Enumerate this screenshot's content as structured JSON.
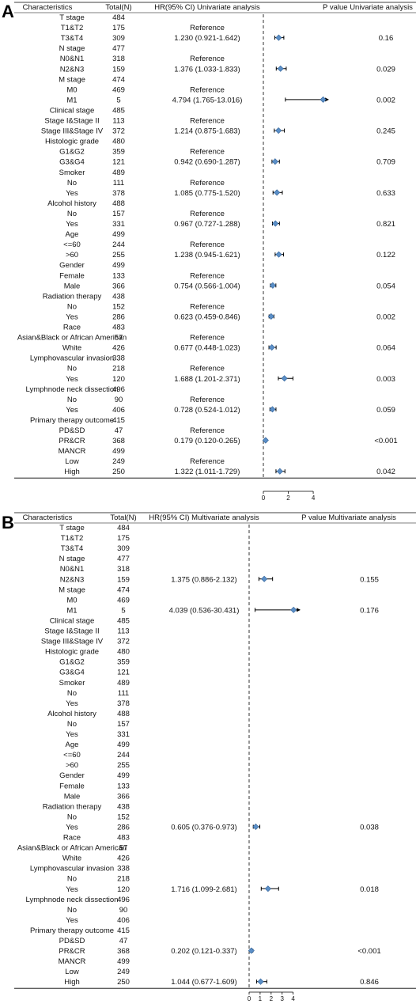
{
  "chart_data": [
    {
      "type": "forest",
      "panel": "A",
      "headers": {
        "characteristics": "Characteristics",
        "total": "Total(N)",
        "hr": "HR(95% CI) Univariate analysis",
        "p": "P value Univariate analysis"
      },
      "x_ticks": [
        "0",
        "2",
        "4"
      ],
      "x_range": [
        0,
        5.2
      ],
      "reference_line": 0,
      "rows": [
        {
          "label": "T stage",
          "n": "484"
        },
        {
          "label": "T1&T2",
          "n": "175",
          "hr_text": "Reference"
        },
        {
          "label": "T3&T4",
          "n": "309",
          "hr_text": "1.230 (0.921-1.642)",
          "hr": 1.23,
          "lo": 0.921,
          "hi": 1.642,
          "p": "0.16"
        },
        {
          "label": "N stage",
          "n": "477"
        },
        {
          "label": "N0&N1",
          "n": "318",
          "hr_text": "Reference"
        },
        {
          "label": "N2&N3",
          "n": "159",
          "hr_text": "1.376 (1.033-1.833)",
          "hr": 1.376,
          "lo": 1.033,
          "hi": 1.833,
          "p": "0.029"
        },
        {
          "label": "M stage",
          "n": "474"
        },
        {
          "label": "M0",
          "n": "469",
          "hr_text": "Reference"
        },
        {
          "label": "M1",
          "n": "5",
          "hr_text": "4.794 (1.765-13.016)",
          "hr": 4.794,
          "lo": 1.765,
          "hi": 13.016,
          "p": "0.002"
        },
        {
          "label": "Clinical stage",
          "n": "485"
        },
        {
          "label": "Stage I&Stage II",
          "n": "113",
          "hr_text": "Reference"
        },
        {
          "label": "Stage III&Stage IV",
          "n": "372",
          "hr_text": "1.214 (0.875-1.683)",
          "hr": 1.214,
          "lo": 0.875,
          "hi": 1.683,
          "p": "0.245"
        },
        {
          "label": "Histologic grade",
          "n": "480"
        },
        {
          "label": "G1&G2",
          "n": "359",
          "hr_text": "Reference"
        },
        {
          "label": "G3&G4",
          "n": "121",
          "hr_text": "0.942 (0.690-1.287)",
          "hr": 0.942,
          "lo": 0.69,
          "hi": 1.287,
          "p": "0.709"
        },
        {
          "label": "Smoker",
          "n": "489"
        },
        {
          "label": "No",
          "n": "111",
          "hr_text": "Reference"
        },
        {
          "label": "Yes",
          "n": "378",
          "hr_text": "1.085 (0.775-1.520)",
          "hr": 1.085,
          "lo": 0.775,
          "hi": 1.52,
          "p": "0.633"
        },
        {
          "label": "Alcohol history",
          "n": "488"
        },
        {
          "label": "No",
          "n": "157",
          "hr_text": "Reference"
        },
        {
          "label": "Yes",
          "n": "331",
          "hr_text": "0.967 (0.727-1.288)",
          "hr": 0.967,
          "lo": 0.727,
          "hi": 1.288,
          "p": "0.821"
        },
        {
          "label": "Age",
          "n": "499"
        },
        {
          "label": "<=60",
          "n": "244",
          "hr_text": "Reference"
        },
        {
          "label": ">60",
          "n": "255",
          "hr_text": "1.238 (0.945-1.621)",
          "hr": 1.238,
          "lo": 0.945,
          "hi": 1.621,
          "p": "0.122"
        },
        {
          "label": "Gender",
          "n": "499"
        },
        {
          "label": "Female",
          "n": "133",
          "hr_text": "Reference"
        },
        {
          "label": "Male",
          "n": "366",
          "hr_text": "0.754 (0.566-1.004)",
          "hr": 0.754,
          "lo": 0.566,
          "hi": 1.004,
          "p": "0.054"
        },
        {
          "label": "Radiation therapy",
          "n": "438"
        },
        {
          "label": "No",
          "n": "152",
          "hr_text": "Reference"
        },
        {
          "label": "Yes",
          "n": "286",
          "hr_text": "0.623 (0.459-0.846)",
          "hr": 0.623,
          "lo": 0.459,
          "hi": 0.846,
          "p": "0.002"
        },
        {
          "label": "Race",
          "n": "483"
        },
        {
          "label": "Asian&Black or African American",
          "n": "57",
          "hr_text": "Reference"
        },
        {
          "label": "White",
          "n": "426",
          "hr_text": "0.677 (0.448-1.023)",
          "hr": 0.677,
          "lo": 0.448,
          "hi": 1.023,
          "p": "0.064"
        },
        {
          "label": "Lymphovascular invasion",
          "n": "338"
        },
        {
          "label": "No",
          "n": "218",
          "hr_text": "Reference"
        },
        {
          "label": "Yes",
          "n": "120",
          "hr_text": "1.688 (1.201-2.371)",
          "hr": 1.688,
          "lo": 1.201,
          "hi": 2.371,
          "p": "0.003"
        },
        {
          "label": "Lymphnode neck dissection",
          "n": "496"
        },
        {
          "label": "No",
          "n": "90",
          "hr_text": "Reference"
        },
        {
          "label": "Yes",
          "n": "406",
          "hr_text": "0.728 (0.524-1.012)",
          "hr": 0.728,
          "lo": 0.524,
          "hi": 1.012,
          "p": "0.059"
        },
        {
          "label": "Primary therapy outcome",
          "n": "415"
        },
        {
          "label": "PD&SD",
          "n": "47",
          "hr_text": "Reference"
        },
        {
          "label": "PR&CR",
          "n": "368",
          "hr_text": "0.179 (0.120-0.265)",
          "hr": 0.179,
          "lo": 0.12,
          "hi": 0.265,
          "p": "<0.001"
        },
        {
          "label": "MANCR",
          "n": "499"
        },
        {
          "label": "Low",
          "n": "249",
          "hr_text": "Reference"
        },
        {
          "label": "High",
          "n": "250",
          "hr_text": "1.322 (1.011-1.729)",
          "hr": 1.322,
          "lo": 1.011,
          "hi": 1.729,
          "p": "0.042"
        }
      ]
    },
    {
      "type": "forest",
      "panel": "B",
      "headers": {
        "characteristics": "Characteristics",
        "total": "Total(N)",
        "hr": "HR(95% CI) Multivariate analysis",
        "p": "P value Multivariate analysis"
      },
      "x_ticks": [
        "0",
        "1",
        "2",
        "3",
        "4"
      ],
      "x_range": [
        0,
        4.6
      ],
      "reference_line": 0,
      "rows": [
        {
          "label": "T stage",
          "n": "484"
        },
        {
          "label": "T1&T2",
          "n": "175"
        },
        {
          "label": "T3&T4",
          "n": "309"
        },
        {
          "label": "N stage",
          "n": "477"
        },
        {
          "label": "N0&N1",
          "n": "318"
        },
        {
          "label": "N2&N3",
          "n": "159",
          "hr_text": "1.375 (0.886-2.132)",
          "hr": 1.375,
          "lo": 0.886,
          "hi": 2.132,
          "p": "0.155"
        },
        {
          "label": "M stage",
          "n": "474"
        },
        {
          "label": "M0",
          "n": "469"
        },
        {
          "label": "M1",
          "n": "5",
          "hr_text": "4.039 (0.536-30.431)",
          "hr": 4.039,
          "lo": 0.536,
          "hi": 30.431,
          "p": "0.176"
        },
        {
          "label": "Clinical stage",
          "n": "485"
        },
        {
          "label": "Stage I&Stage II",
          "n": "113"
        },
        {
          "label": "Stage III&Stage IV",
          "n": "372"
        },
        {
          "label": "Histologic grade",
          "n": "480"
        },
        {
          "label": "G1&G2",
          "n": "359"
        },
        {
          "label": "G3&G4",
          "n": "121"
        },
        {
          "label": "Smoker",
          "n": "489"
        },
        {
          "label": "No",
          "n": "111"
        },
        {
          "label": "Yes",
          "n": "378"
        },
        {
          "label": "Alcohol history",
          "n": "488"
        },
        {
          "label": "No",
          "n": "157"
        },
        {
          "label": "Yes",
          "n": "331"
        },
        {
          "label": "Age",
          "n": "499"
        },
        {
          "label": "<=60",
          "n": "244"
        },
        {
          "label": ">60",
          "n": "255"
        },
        {
          "label": "Gender",
          "n": "499"
        },
        {
          "label": "Female",
          "n": "133"
        },
        {
          "label": "Male",
          "n": "366"
        },
        {
          "label": "Radiation therapy",
          "n": "438"
        },
        {
          "label": "No",
          "n": "152"
        },
        {
          "label": "Yes",
          "n": "286",
          "hr_text": "0.605 (0.376-0.973)",
          "hr": 0.605,
          "lo": 0.376,
          "hi": 0.973,
          "p": "0.038"
        },
        {
          "label": "Race",
          "n": "483"
        },
        {
          "label": "Asian&Black or African American",
          "n": "57"
        },
        {
          "label": "White",
          "n": "426"
        },
        {
          "label": "Lymphovascular invasion",
          "n": "338"
        },
        {
          "label": "No",
          "n": "218"
        },
        {
          "label": "Yes",
          "n": "120",
          "hr_text": "1.716 (1.099-2.681)",
          "hr": 1.716,
          "lo": 1.099,
          "hi": 2.681,
          "p": "0.018"
        },
        {
          "label": "Lymphnode neck dissection",
          "n": "496"
        },
        {
          "label": "No",
          "n": "90"
        },
        {
          "label": "Yes",
          "n": "406"
        },
        {
          "label": "Primary therapy outcome",
          "n": "415"
        },
        {
          "label": "PD&SD",
          "n": "47"
        },
        {
          "label": "PR&CR",
          "n": "368",
          "hr_text": "0.202 (0.121-0.337)",
          "hr": 0.202,
          "lo": 0.121,
          "hi": 0.337,
          "p": "<0.001"
        },
        {
          "label": "MANCR",
          "n": "499"
        },
        {
          "label": "Low",
          "n": "249"
        },
        {
          "label": "High",
          "n": "250",
          "hr_text": "1.044 (0.677-1.609)",
          "hr": 1.044,
          "lo": 0.677,
          "hi": 1.609,
          "p": "0.846"
        }
      ]
    }
  ],
  "colors": {
    "marker_fill": "#5b8fc7",
    "marker_stroke": "#2e5f96",
    "ci_line": "#000000",
    "text": "#111111"
  }
}
